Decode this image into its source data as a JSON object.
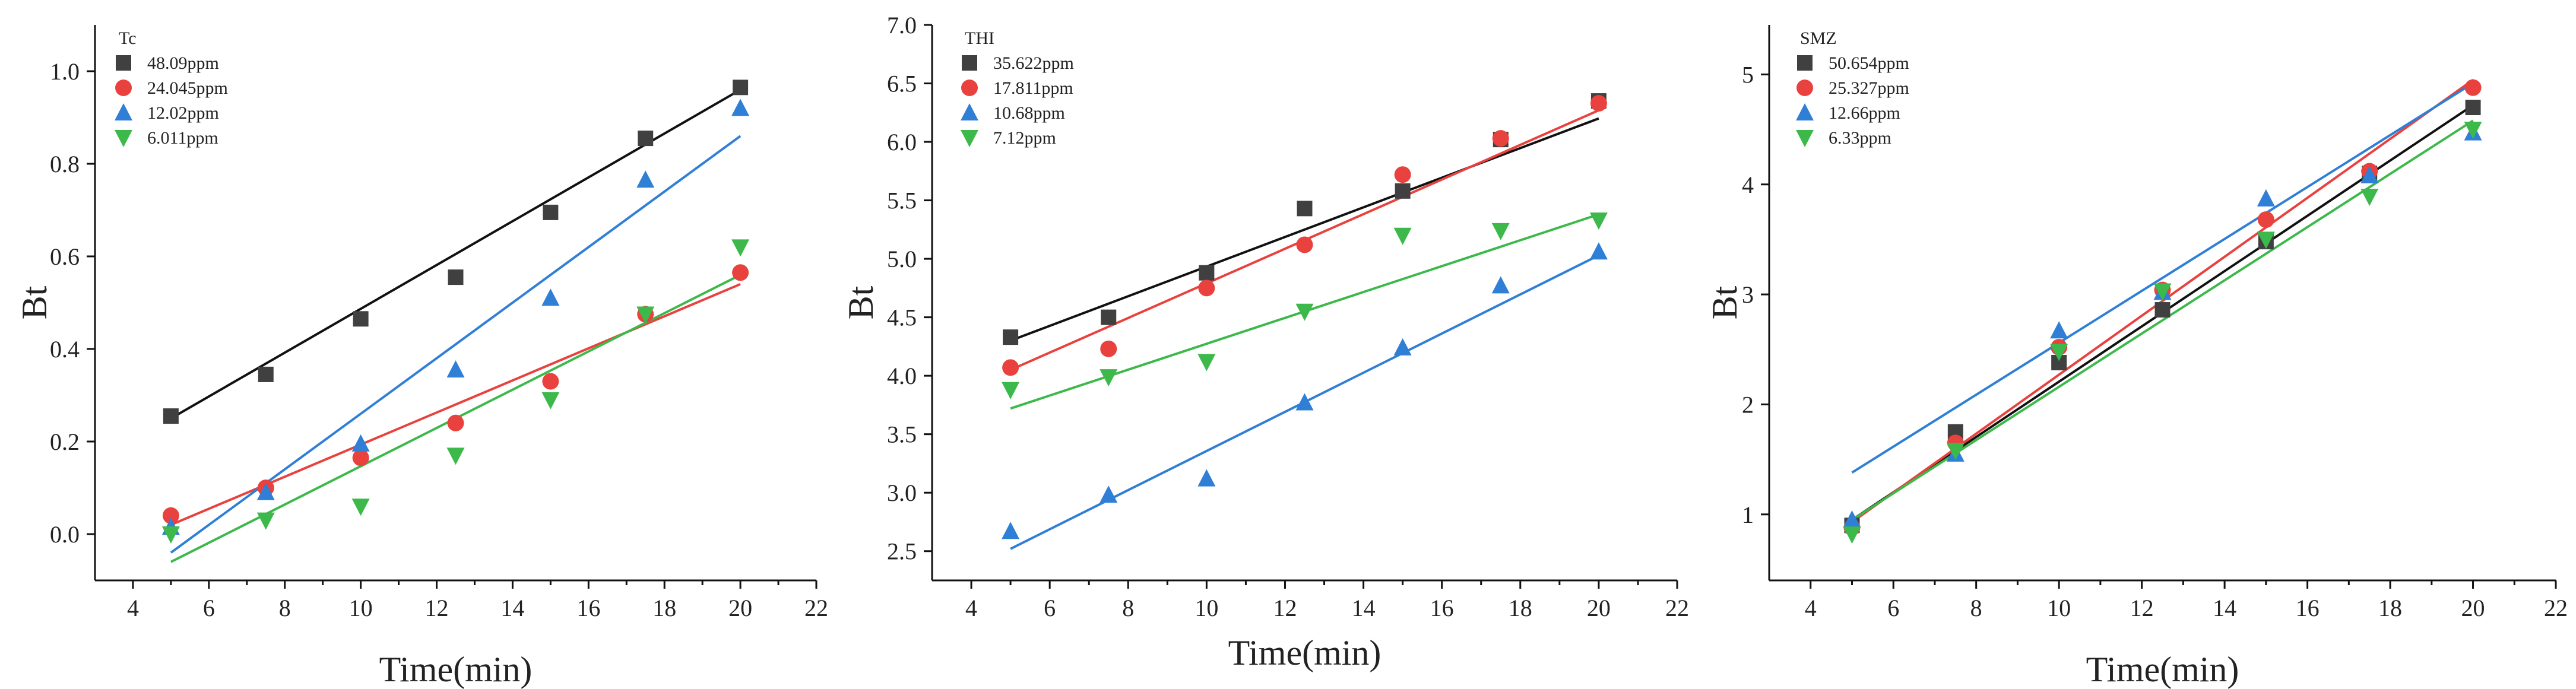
{
  "chart_data": [
    {
      "type": "scatter",
      "title": "Tc",
      "xlabel": "Time(min)",
      "ylabel": "Bt",
      "xlim": [
        3,
        22
      ],
      "ylim": [
        -0.1,
        1.1
      ],
      "xticks": [
        4,
        6,
        8,
        10,
        12,
        14,
        16,
        18,
        20,
        22
      ],
      "yticks": [
        0.0,
        0.2,
        0.4,
        0.6,
        0.8,
        1.0
      ],
      "ytick_labels": [
        "0.0",
        "0.2",
        "0.4",
        "0.6",
        "0.8",
        "1.0"
      ],
      "x": [
        5,
        7.5,
        10,
        12.5,
        15,
        17.5,
        20
      ],
      "legend_position": "top-left",
      "series": [
        {
          "name": "48.09ppm",
          "color": "#404040",
          "marker": "square",
          "values": [
            0.255,
            0.345,
            0.465,
            0.555,
            0.695,
            0.855,
            0.965
          ],
          "fit": [
            0.25,
            0.96
          ]
        },
        {
          "name": "24.045ppm",
          "color": "#e8413e",
          "marker": "circle",
          "values": [
            0.04,
            0.1,
            0.165,
            0.24,
            0.33,
            0.475,
            0.565
          ],
          "fit": [
            0.02,
            0.54
          ]
        },
        {
          "name": "12.02ppm",
          "color": "#2f7fd6",
          "marker": "triangle-up",
          "values": [
            0.015,
            0.09,
            0.195,
            0.355,
            0.51,
            0.765,
            0.92
          ],
          "fit": [
            -0.04,
            0.86
          ]
        },
        {
          "name": "6.011ppm",
          "color": "#3cb94a",
          "marker": "triangle-down",
          "values": [
            0.0,
            0.03,
            0.06,
            0.17,
            0.29,
            0.475,
            0.62
          ],
          "fit": [
            -0.06,
            0.56
          ]
        }
      ]
    },
    {
      "type": "scatter",
      "title": "THI",
      "xlabel": "Time(min)",
      "ylabel": "Bt",
      "xlim": [
        3,
        22
      ],
      "ylim": [
        2.25,
        7.0
      ],
      "xticks": [
        4,
        6,
        8,
        10,
        12,
        14,
        16,
        18,
        20,
        22
      ],
      "yticks": [
        2.5,
        3.0,
        3.5,
        4.0,
        4.5,
        5.0,
        5.5,
        6.0,
        6.5,
        7.0
      ],
      "ytick_labels": [
        "2.5",
        "3.0",
        "3.5",
        "4.0",
        "4.5",
        "5.0",
        "5.5",
        "6.0",
        "6.5",
        "7.0"
      ],
      "x": [
        5,
        7.5,
        10,
        12.5,
        15,
        17.5,
        20
      ],
      "legend_position": "top-left",
      "series": [
        {
          "name": "35.622ppm",
          "color": "#404040",
          "marker": "square",
          "values": [
            4.33,
            4.5,
            4.88,
            5.43,
            5.58,
            6.02,
            6.35
          ],
          "fit": [
            4.3,
            6.2
          ]
        },
        {
          "name": "17.811ppm",
          "color": "#e8413e",
          "marker": "circle",
          "values": [
            4.07,
            4.23,
            4.75,
            5.12,
            5.72,
            6.03,
            6.33
          ],
          "fit": [
            4.05,
            6.27
          ]
        },
        {
          "name": "10.68ppm",
          "color": "#2f7fd6",
          "marker": "triangle-up",
          "values": [
            2.67,
            2.98,
            3.12,
            3.77,
            4.24,
            4.77,
            5.06
          ],
          "fit": [
            2.52,
            5.03
          ]
        },
        {
          "name": "7.12ppm",
          "color": "#3cb94a",
          "marker": "triangle-down",
          "values": [
            3.88,
            3.99,
            4.12,
            4.55,
            5.2,
            5.24,
            5.33
          ],
          "fit": [
            3.72,
            5.38
          ]
        }
      ]
    },
    {
      "type": "scatter",
      "title": "SMZ",
      "xlabel": "Time(min)",
      "ylabel": "Bt",
      "xlim": [
        3,
        22
      ],
      "ylim": [
        0.4,
        5.45
      ],
      "xticks": [
        4,
        6,
        8,
        10,
        12,
        14,
        16,
        18,
        20,
        22
      ],
      "yticks": [
        1,
        2,
        3,
        4,
        5
      ],
      "ytick_labels": [
        "1",
        "2",
        "3",
        "4",
        "5"
      ],
      "x": [
        5,
        7.5,
        10,
        12.5,
        15,
        17.5,
        20
      ],
      "legend_position": "top-left",
      "series": [
        {
          "name": "50.654ppm",
          "color": "#404040",
          "marker": "square",
          "values": [
            0.9,
            1.75,
            2.38,
            2.86,
            3.48,
            4.1,
            4.7
          ],
          "fit": [
            0.95,
            4.72
          ]
        },
        {
          "name": "25.327ppm",
          "color": "#e8413e",
          "marker": "circle",
          "values": [
            0.88,
            1.65,
            2.52,
            3.04,
            3.68,
            4.12,
            4.88
          ],
          "fit": [
            0.93,
            4.95
          ]
        },
        {
          "name": "12.66ppm",
          "color": "#2f7fd6",
          "marker": "triangle-up",
          "values": [
            0.95,
            1.55,
            2.67,
            3.02,
            3.87,
            4.08,
            4.47
          ],
          "fit": [
            1.38,
            4.92
          ]
        },
        {
          "name": "6.33ppm",
          "color": "#3cb94a",
          "marker": "triangle-down",
          "values": [
            0.82,
            1.58,
            2.48,
            3.03,
            3.5,
            3.89,
            4.5
          ],
          "fit": [
            0.95,
            4.58
          ]
        }
      ]
    }
  ]
}
